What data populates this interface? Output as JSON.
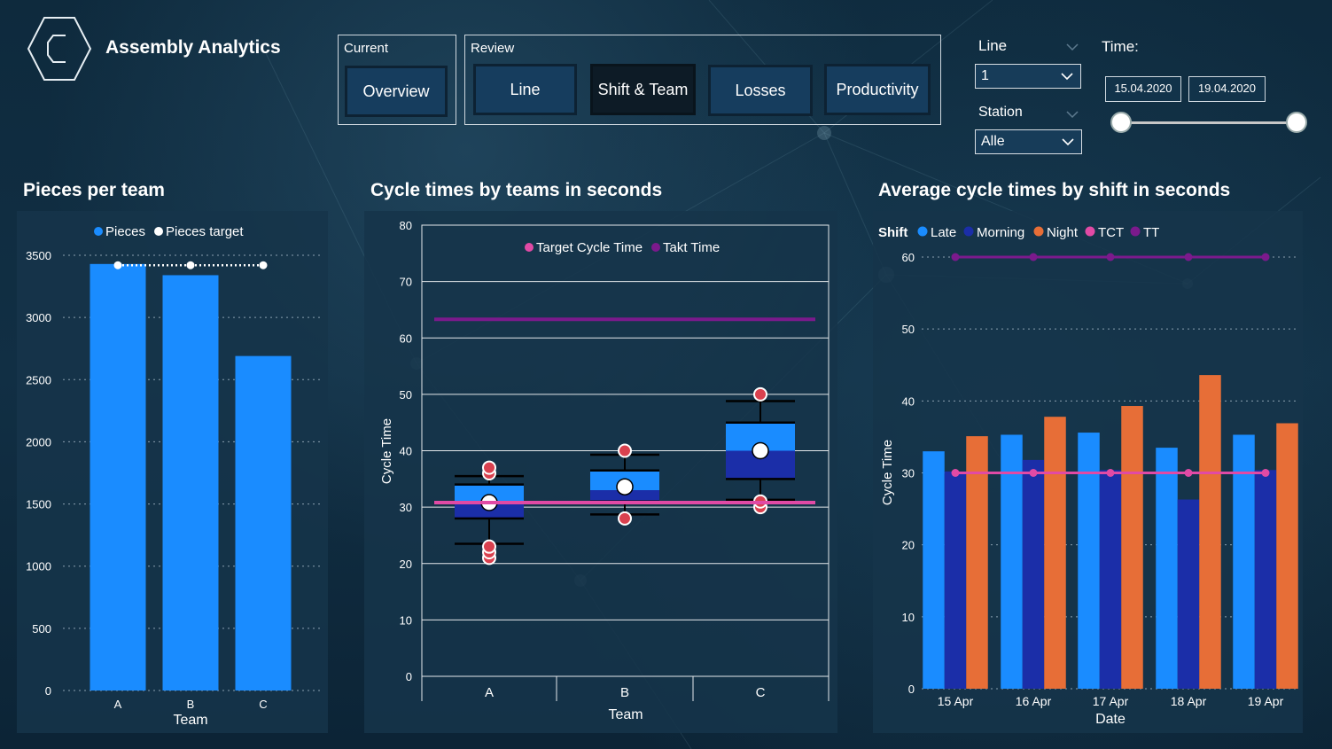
{
  "header": {
    "app_title": "Assembly Analytics",
    "current_group_label": "Current",
    "review_group_label": "Review",
    "buttons": {
      "overview": "Overview",
      "line": "Line",
      "shift_team": "Shift & Team",
      "losses": "Losses",
      "productivity": "Productivity"
    },
    "active_button": "Shift & Team"
  },
  "filters": {
    "line_label": "Line",
    "line_value": "1",
    "station_label": "Station",
    "station_value": "Alle",
    "time_label": "Time:",
    "date_from": "15.04.2020",
    "date_to": "19.04.2020"
  },
  "colors": {
    "pieces": "#1a8cff",
    "late": "#1a8cff",
    "morning": "#1b2ea8",
    "night": "#e76e37",
    "tct": "#e14aa5",
    "tt": "#7b1a8c"
  },
  "chart_data": [
    {
      "type": "bar",
      "title": "Pieces per team",
      "categories": [
        "A",
        "B",
        "C"
      ],
      "series": [
        {
          "name": "Pieces",
          "values": [
            3430,
            3340,
            2690
          ]
        },
        {
          "name": "Pieces target",
          "values": [
            3420,
            3420,
            3420
          ]
        }
      ],
      "legend": [
        "Pieces",
        "Pieces target"
      ],
      "xlabel": "Team",
      "ylabel": "",
      "ylim": [
        0,
        3500
      ],
      "yticks": [
        "0",
        "500",
        "1000",
        "1500",
        "2000",
        "2500",
        "3000",
        "3500"
      ],
      "grid": true,
      "legend_position": "top"
    },
    {
      "type": "box",
      "title": "Cycle times by teams in seconds",
      "categories": [
        "A",
        "B",
        "C"
      ],
      "boxes": [
        {
          "team": "A",
          "whisker_low": 23.5,
          "q1": 28,
          "median": 30.5,
          "mean": 30.8,
          "q3": 34,
          "whisker_high": 35.5,
          "outliers": [
            21,
            22,
            23,
            36,
            37
          ]
        },
        {
          "team": "B",
          "whisker_low": 28.7,
          "q1": 31,
          "median": 33,
          "mean": 33.6,
          "q3": 36.5,
          "whisker_high": 39.3,
          "outliers": [
            28,
            40
          ]
        },
        {
          "team": "C",
          "whisker_low": 31.3,
          "q1": 35,
          "median": 40,
          "mean": 40,
          "q3": 45,
          "whisker_high": 48.8,
          "outliers": [
            30,
            31,
            50
          ]
        }
      ],
      "series": [
        {
          "name": "Target Cycle Time",
          "values": [
            30.8,
            30.8,
            30.8
          ]
        },
        {
          "name": "Takt Time",
          "values": [
            63.3,
            63.3,
            63.3
          ]
        }
      ],
      "legend": [
        "Target Cycle Time",
        "Takt Time"
      ],
      "xlabel": "Team",
      "ylabel": "Cycle Time",
      "ylim": [
        0,
        80
      ],
      "yticks": [
        "0",
        "10",
        "20",
        "30",
        "40",
        "50",
        "60",
        "70",
        "80"
      ],
      "grid": true,
      "legend_position": "top"
    },
    {
      "type": "bar",
      "title": "Average cycle times by shift in seconds",
      "categories": [
        "15 Apr",
        "16 Apr",
        "17 Apr",
        "18 Apr",
        "19 Apr"
      ],
      "legend_title": "Shift",
      "series": [
        {
          "name": "Late",
          "values": [
            33,
            35.3,
            35.6,
            33.5,
            35.3
          ]
        },
        {
          "name": "Morning",
          "values": [
            30.2,
            31.8,
            30.4,
            26.3,
            30.4
          ]
        },
        {
          "name": "Night",
          "values": [
            35.1,
            37.8,
            39.3,
            43.6,
            36.9
          ]
        },
        {
          "name": "TCT",
          "values": [
            30,
            30,
            30,
            30,
            30
          ]
        },
        {
          "name": "TT",
          "values": [
            60,
            60,
            60,
            60,
            60
          ]
        }
      ],
      "legend": [
        "Late",
        "Morning",
        "Night",
        "TCT",
        "TT"
      ],
      "xlabel": "Date",
      "ylabel": "Cycle Time",
      "ylim": [
        0,
        60
      ],
      "yticks": [
        "0",
        "10",
        "20",
        "30",
        "40",
        "50",
        "60"
      ],
      "grid": true,
      "legend_position": "top-left"
    }
  ]
}
